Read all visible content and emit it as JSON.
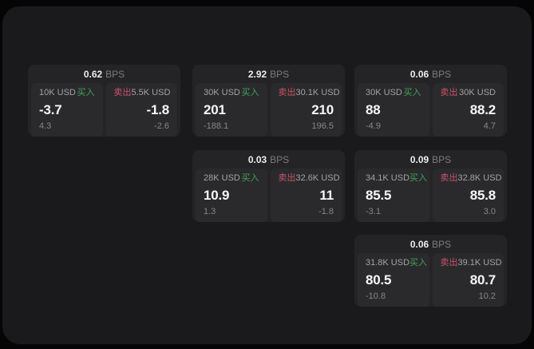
{
  "labels": {
    "bps_unit": "BPS",
    "buy": "买入",
    "sell": "卖出"
  },
  "colors": {
    "background": "#050506",
    "panel": "#1a1a1c",
    "card": "#242426",
    "pane": "#2a2a2c",
    "buy_green": "#3fa35c",
    "sell_red": "#c9536a"
  },
  "cards": [
    {
      "row": 1,
      "col": 1,
      "bps_value": "0.62",
      "buy": {
        "amount": "10K USD",
        "value": "-3.7",
        "sub_value": "4.3"
      },
      "sell": {
        "amount": "5.5K USD",
        "value": "-1.8",
        "sub_value": "-2.6"
      }
    },
    {
      "row": 1,
      "col": 2,
      "bps_value": "2.92",
      "buy": {
        "amount": "30K USD",
        "value": "201",
        "sub_value": "-188.1"
      },
      "sell": {
        "amount": "30.1K USD",
        "value": "210",
        "sub_value": "196.5"
      }
    },
    {
      "row": 1,
      "col": 3,
      "bps_value": "0.06",
      "buy": {
        "amount": "30K USD",
        "value": "88",
        "sub_value": "-4.9"
      },
      "sell": {
        "amount": "30K USD",
        "value": "88.2",
        "sub_value": "4.7"
      }
    },
    {
      "row": 2,
      "col": 2,
      "bps_value": "0.03",
      "buy": {
        "amount": "28K USD",
        "value": "10.9",
        "sub_value": "1.3"
      },
      "sell": {
        "amount": "32.6K USD",
        "value": "11",
        "sub_value": "-1.8"
      }
    },
    {
      "row": 2,
      "col": 3,
      "bps_value": "0.09",
      "buy": {
        "amount": "34.1K USD",
        "value": "85.5",
        "sub_value": "-3.1"
      },
      "sell": {
        "amount": "32.8K USD",
        "value": "85.8",
        "sub_value": "3.0"
      }
    },
    {
      "row": 3,
      "col": 3,
      "bps_value": "0.06",
      "buy": {
        "amount": "31.8K USD",
        "value": "80.5",
        "sub_value": "-10.8"
      },
      "sell": {
        "amount": "39.1K USD",
        "value": "80.7",
        "sub_value": "10.2"
      }
    }
  ]
}
